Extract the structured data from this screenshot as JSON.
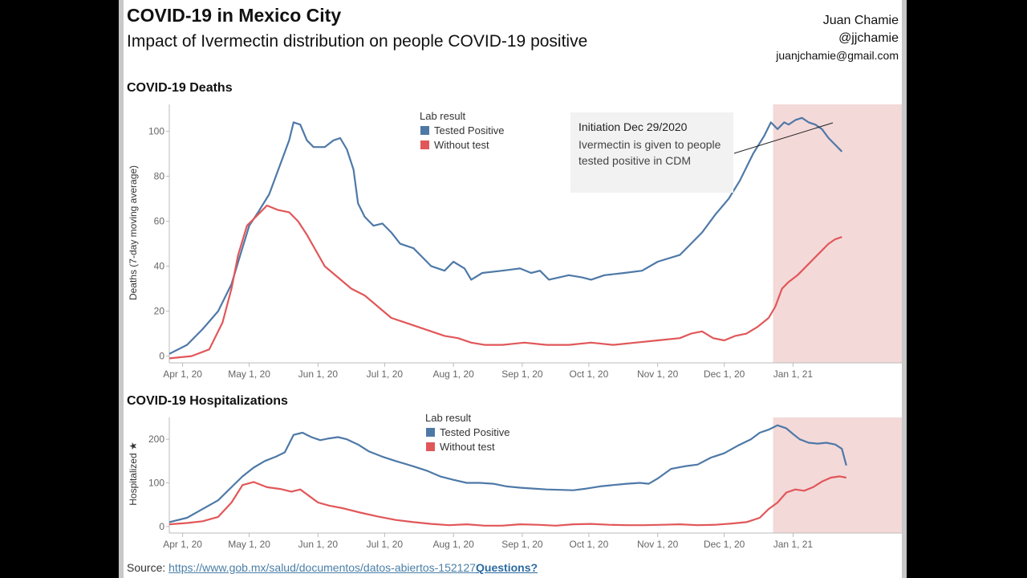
{
  "title": "COVID-19 in Mexico City",
  "subtitle": "Impact of Ivermectin distribution on people COVID-19 positive",
  "author": {
    "name": "Juan Chamie",
    "handle": "@jjchamie",
    "email": "juanjchamie@gmail.com"
  },
  "annotation": {
    "heading": "Initiation Dec 29/2020",
    "body": "Ivermectin is given to people tested positive in CDM"
  },
  "source": {
    "label": "Source:",
    "url": "https://www.gob.mx/salud/documentos/datos-abiertos-152127",
    "questions": "Questions?"
  },
  "colors": {
    "tested_positive": "#4e79a7",
    "without_test": "#e15759",
    "highlight": "#f4d9d9"
  },
  "chart_data": [
    {
      "type": "line",
      "title": "COVID-19 Deaths",
      "ylabel": "Deaths (7-day moving average)",
      "xlabel": "",
      "ylim": [
        -3,
        112
      ],
      "yticks": [
        0,
        20,
        40,
        60,
        80,
        100
      ],
      "xticks": [
        "Apr 1, 20",
        "May 1, 20",
        "Jun 1, 20",
        "Jul 1, 20",
        "Aug 1, 20",
        "Sep 1, 20",
        "Oct 1, 20",
        "Nov 1, 20",
        "Dec 1, 20",
        "Jan 1, 21"
      ],
      "x_range_days": [
        0,
        330
      ],
      "highlight_range_days": [
        272,
        330
      ],
      "legend_title": "Lab result",
      "legend_position": "top-center",
      "series": [
        {
          "name": "Tested Positive",
          "points": [
            [
              0,
              1
            ],
            [
              8,
              5
            ],
            [
              15,
              12
            ],
            [
              22,
              20
            ],
            [
              28,
              32
            ],
            [
              32,
              45
            ],
            [
              36,
              58
            ],
            [
              40,
              64
            ],
            [
              45,
              72
            ],
            [
              48,
              80
            ],
            [
              51,
              88
            ],
            [
              54,
              96
            ],
            [
              56,
              104
            ],
            [
              59,
              103
            ],
            [
              62,
              96
            ],
            [
              65,
              93
            ],
            [
              70,
              93
            ],
            [
              74,
              96
            ],
            [
              77,
              97
            ],
            [
              80,
              92
            ],
            [
              83,
              83
            ],
            [
              85,
              68
            ],
            [
              88,
              62
            ],
            [
              92,
              58
            ],
            [
              96,
              59
            ],
            [
              100,
              55
            ],
            [
              104,
              50
            ],
            [
              110,
              48
            ],
            [
              114,
              44
            ],
            [
              118,
              40
            ],
            [
              124,
              38
            ],
            [
              128,
              42
            ],
            [
              133,
              39
            ],
            [
              136,
              34
            ],
            [
              141,
              37
            ],
            [
              150,
              38
            ],
            [
              158,
              39
            ],
            [
              163,
              37
            ],
            [
              167,
              38
            ],
            [
              171,
              34
            ],
            [
              180,
              36
            ],
            [
              186,
              35
            ],
            [
              190,
              34
            ],
            [
              196,
              36
            ],
            [
              205,
              37
            ],
            [
              213,
              38
            ],
            [
              220,
              42
            ],
            [
              230,
              45
            ],
            [
              235,
              50
            ],
            [
              240,
              55
            ],
            [
              246,
              63
            ],
            [
              252,
              70
            ],
            [
              257,
              78
            ],
            [
              263,
              90
            ],
            [
              268,
              98
            ],
            [
              271,
              104
            ],
            [
              274,
              101
            ],
            [
              277,
              104
            ],
            [
              279,
              103
            ],
            [
              282,
              105
            ],
            [
              285,
              106
            ],
            [
              288,
              104
            ],
            [
              291,
              103
            ],
            [
              294,
              101
            ],
            [
              297,
              97
            ],
            [
              300,
              94
            ],
            [
              303,
              91
            ]
          ]
        },
        {
          "name": "Without test",
          "points": [
            [
              0,
              -1
            ],
            [
              10,
              0
            ],
            [
              18,
              3
            ],
            [
              24,
              15
            ],
            [
              28,
              30
            ],
            [
              31,
              45
            ],
            [
              35,
              58
            ],
            [
              40,
              63
            ],
            [
              44,
              67
            ],
            [
              49,
              65
            ],
            [
              54,
              64
            ],
            [
              58,
              60
            ],
            [
              62,
              54
            ],
            [
              66,
              47
            ],
            [
              70,
              40
            ],
            [
              76,
              35
            ],
            [
              82,
              30
            ],
            [
              88,
              27
            ],
            [
              94,
              22
            ],
            [
              100,
              17
            ],
            [
              106,
              15
            ],
            [
              112,
              13
            ],
            [
              118,
              11
            ],
            [
              124,
              9
            ],
            [
              130,
              8
            ],
            [
              136,
              6
            ],
            [
              142,
              5
            ],
            [
              150,
              5
            ],
            [
              160,
              6
            ],
            [
              170,
              5
            ],
            [
              180,
              5
            ],
            [
              190,
              6
            ],
            [
              200,
              5
            ],
            [
              210,
              6
            ],
            [
              220,
              7
            ],
            [
              230,
              8
            ],
            [
              235,
              10
            ],
            [
              240,
              11
            ],
            [
              245,
              8
            ],
            [
              250,
              7
            ],
            [
              255,
              9
            ],
            [
              260,
              10
            ],
            [
              265,
              13
            ],
            [
              270,
              17
            ],
            [
              273,
              22
            ],
            [
              276,
              30
            ],
            [
              279,
              33
            ],
            [
              283,
              36
            ],
            [
              288,
              41
            ],
            [
              293,
              46
            ],
            [
              297,
              50
            ],
            [
              300,
              52
            ],
            [
              303,
              53
            ]
          ]
        }
      ]
    },
    {
      "type": "line",
      "title": "COVID-19 Hospitalizations",
      "ylabel": "Hospitalized ★",
      "xlabel": "",
      "ylim": [
        -15,
        250
      ],
      "yticks": [
        0,
        100,
        200
      ],
      "xticks": [
        "Apr 1, 20",
        "May 1, 20",
        "Jun 1, 20",
        "Jul 1, 20",
        "Aug 1, 20",
        "Sep 1, 20",
        "Oct 1, 20",
        "Nov 1, 20",
        "Dec 1, 20",
        "Jan 1, 21"
      ],
      "x_range_days": [
        0,
        330
      ],
      "highlight_range_days": [
        272,
        330
      ],
      "legend_title": "Lab result",
      "legend_position": "top-center",
      "series": [
        {
          "name": "Tested Positive",
          "points": [
            [
              0,
              10
            ],
            [
              8,
              20
            ],
            [
              15,
              40
            ],
            [
              22,
              60
            ],
            [
              28,
              90
            ],
            [
              33,
              115
            ],
            [
              38,
              135
            ],
            [
              43,
              150
            ],
            [
              48,
              160
            ],
            [
              52,
              170
            ],
            [
              56,
              210
            ],
            [
              60,
              215
            ],
            [
              64,
              205
            ],
            [
              68,
              198
            ],
            [
              72,
              202
            ],
            [
              76,
              205
            ],
            [
              80,
              200
            ],
            [
              85,
              188
            ],
            [
              90,
              172
            ],
            [
              96,
              160
            ],
            [
              102,
              150
            ],
            [
              110,
              138
            ],
            [
              116,
              128
            ],
            [
              122,
              115
            ],
            [
              128,
              107
            ],
            [
              134,
              100
            ],
            [
              140,
              100
            ],
            [
              146,
              98
            ],
            [
              152,
              92
            ],
            [
              158,
              89
            ],
            [
              164,
              87
            ],
            [
              170,
              85
            ],
            [
              176,
              84
            ],
            [
              182,
              83
            ],
            [
              188,
              87
            ],
            [
              194,
              92
            ],
            [
              200,
              95
            ],
            [
              206,
              98
            ],
            [
              212,
              100
            ],
            [
              216,
              98
            ],
            [
              220,
              110
            ],
            [
              226,
              132
            ],
            [
              232,
              138
            ],
            [
              238,
              142
            ],
            [
              244,
              158
            ],
            [
              250,
              168
            ],
            [
              256,
              185
            ],
            [
              262,
              200
            ],
            [
              266,
              215
            ],
            [
              270,
              222
            ],
            [
              274,
              232
            ],
            [
              278,
              225
            ],
            [
              281,
              212
            ],
            [
              284,
              200
            ],
            [
              288,
              192
            ],
            [
              292,
              190
            ],
            [
              296,
              192
            ],
            [
              300,
              188
            ],
            [
              303,
              178
            ],
            [
              305,
              140
            ]
          ]
        },
        {
          "name": "Without test",
          "points": [
            [
              0,
              5
            ],
            [
              8,
              8
            ],
            [
              15,
              12
            ],
            [
              22,
              22
            ],
            [
              28,
              55
            ],
            [
              33,
              95
            ],
            [
              38,
              102
            ],
            [
              44,
              90
            ],
            [
              50,
              86
            ],
            [
              55,
              80
            ],
            [
              59,
              85
            ],
            [
              63,
              70
            ],
            [
              67,
              55
            ],
            [
              72,
              48
            ],
            [
              78,
              42
            ],
            [
              86,
              32
            ],
            [
              94,
              23
            ],
            [
              102,
              15
            ],
            [
              110,
              10
            ],
            [
              118,
              6
            ],
            [
              126,
              3
            ],
            [
              134,
              5
            ],
            [
              142,
              2
            ],
            [
              150,
              2
            ],
            [
              158,
              5
            ],
            [
              166,
              4
            ],
            [
              174,
              2
            ],
            [
              182,
              5
            ],
            [
              190,
              6
            ],
            [
              198,
              4
            ],
            [
              206,
              3
            ],
            [
              214,
              3
            ],
            [
              222,
              4
            ],
            [
              230,
              5
            ],
            [
              238,
              3
            ],
            [
              246,
              4
            ],
            [
              254,
              7
            ],
            [
              260,
              10
            ],
            [
              266,
              20
            ],
            [
              270,
              40
            ],
            [
              274,
              55
            ],
            [
              278,
              78
            ],
            [
              282,
              85
            ],
            [
              286,
              82
            ],
            [
              290,
              90
            ],
            [
              294,
              103
            ],
            [
              298,
              112
            ],
            [
              302,
              115
            ],
            [
              305,
              112
            ]
          ]
        }
      ]
    }
  ]
}
